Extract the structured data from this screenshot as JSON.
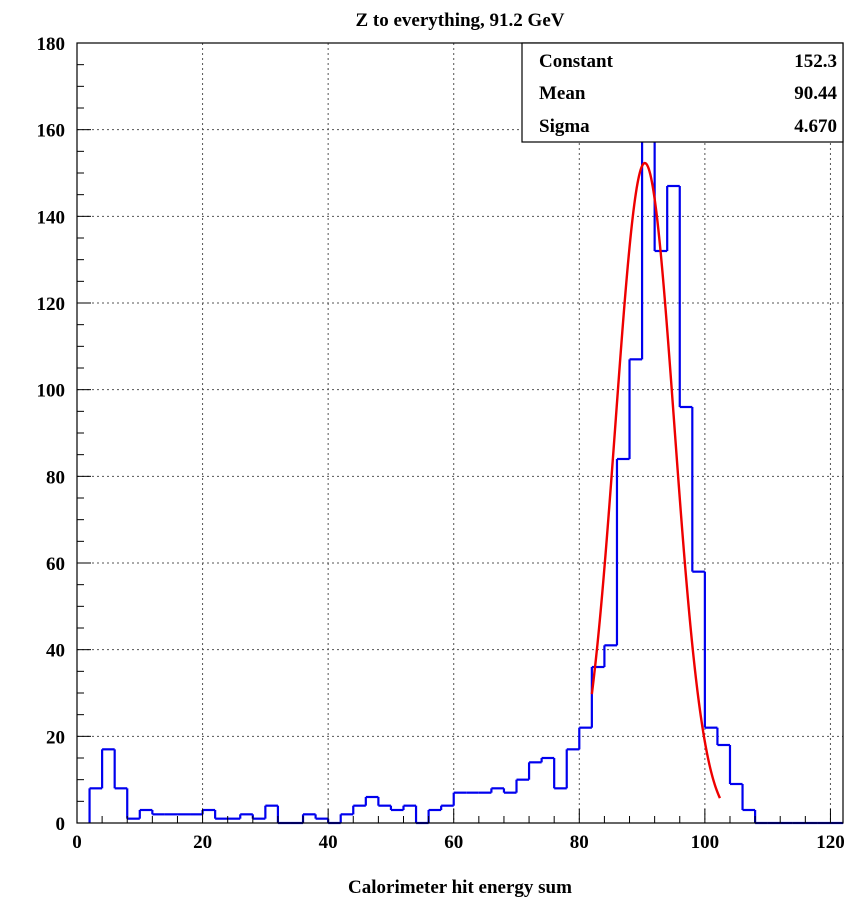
{
  "chart_data": {
    "type": "histogram",
    "title": "Z to everything, 91.2 GeV",
    "xlabel": "Calorimeter hit energy sum",
    "ylabel": "",
    "xlim": [
      0,
      122
    ],
    "ylim": [
      0,
      180
    ],
    "xticks": [
      0,
      20,
      40,
      60,
      80,
      100,
      120
    ],
    "yticks": [
      0,
      20,
      40,
      60,
      80,
      100,
      120,
      140,
      160,
      180
    ],
    "xtick_labels": [
      "0",
      "20",
      "40",
      "60",
      "80",
      "100",
      "120"
    ],
    "ytick_labels": [
      "0",
      "20",
      "40",
      "60",
      "80",
      "100",
      "120",
      "140",
      "160",
      "180"
    ],
    "grid": true,
    "bin_edges_start": 2,
    "bin_width": 2,
    "counts": [
      8,
      17,
      8,
      1,
      3,
      2,
      2,
      2,
      2,
      3,
      1,
      1,
      2,
      1,
      4,
      0,
      0,
      2,
      1,
      0,
      2,
      4,
      6,
      4,
      3,
      4,
      0,
      3,
      4,
      7,
      7,
      7,
      8,
      7,
      10,
      14,
      15,
      8,
      17,
      22,
      36,
      41,
      84,
      107,
      162,
      132,
      147,
      96,
      58,
      22,
      18,
      9,
      3,
      0,
      0,
      0,
      0,
      0,
      0,
      0
    ],
    "series": [
      {
        "name": "histogram",
        "color": "#0000ee"
      },
      {
        "name": "gaussian fit",
        "color": "#ee0000",
        "fit_range": [
          82,
          102.4
        ]
      }
    ],
    "stats": {
      "rows": [
        {
          "label": "Constant",
          "value": "152.3"
        },
        {
          "label": "Mean",
          "value": "90.44"
        },
        {
          "label": "Sigma",
          "value": "4.670"
        }
      ],
      "placement": "top-right"
    },
    "fit": {
      "constant": 152.3,
      "mean": 90.44,
      "sigma": 4.67
    }
  }
}
